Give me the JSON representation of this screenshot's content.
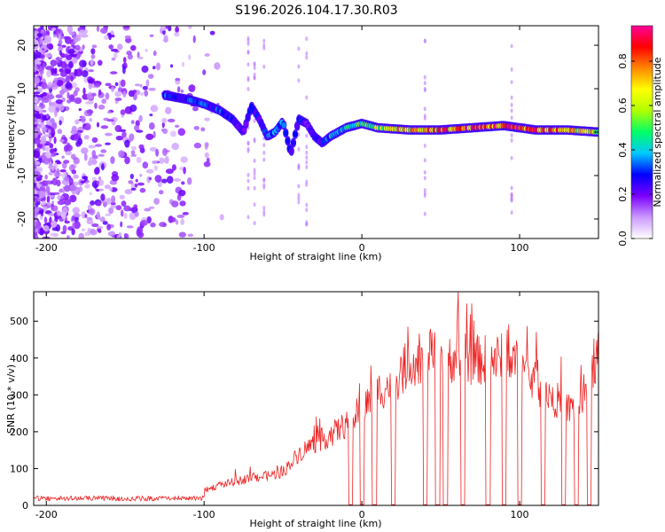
{
  "title": "S196.2026.104.17.30.R03",
  "chart_data": [
    {
      "type": "heatmap",
      "xlabel": "Height of straight line (km)",
      "ylabel": "Frequency (Hz)",
      "xlim": [
        -208,
        150
      ],
      "ylim": [
        -24.5,
        24.5
      ],
      "xticks": [
        -200,
        -100,
        0,
        100
      ],
      "yticks": [
        -20,
        -10,
        0,
        10,
        20
      ],
      "colorbar": {
        "label": "Normalized spectral amplitude",
        "range": [
          0,
          0.96
        ],
        "ticks": [
          0.0,
          0.2,
          0.4,
          0.6,
          0.8
        ],
        "colors": [
          "#ffffff",
          "#cc99ff",
          "#7a00ff",
          "#0000ff",
          "#00c8ff",
          "#00ff66",
          "#b0ff00",
          "#ffff00",
          "#ff8800",
          "#ff0000",
          "#ff0099"
        ]
      },
      "ridge": {
        "x": [
          -125,
          -110,
          -100,
          -90,
          -82,
          -75,
          -70,
          -65,
          -60,
          -55,
          -50,
          -45,
          -40,
          -35,
          -30,
          -25,
          -20,
          -15,
          -10,
          -5,
          0,
          10,
          30,
          50,
          70,
          90,
          110,
          130,
          150
        ],
        "frequency_hz": [
          8.5,
          7.5,
          6.5,
          5.0,
          3.0,
          0.0,
          6.0,
          3.0,
          -1.0,
          0.0,
          2.5,
          -5.0,
          3.0,
          2.0,
          -1.0,
          -2.5,
          -1.0,
          0.0,
          1.0,
          1.5,
          2.0,
          1.0,
          0.5,
          0.5,
          1.0,
          1.5,
          0.5,
          0.5,
          0.0
        ],
        "amplitude": [
          0.3,
          0.3,
          0.3,
          0.3,
          0.25,
          0.2,
          0.3,
          0.25,
          0.3,
          0.35,
          0.3,
          0.25,
          0.3,
          0.2,
          0.2,
          0.25,
          0.35,
          0.4,
          0.4,
          0.45,
          0.45,
          0.55,
          0.7,
          0.75,
          0.8,
          0.8,
          0.85,
          0.7,
          0.6
        ]
      }
    },
    {
      "type": "line",
      "xlabel": "Height of straight line (km)",
      "ylabel": "SNR (10 * v/v)",
      "xlim": [
        -208,
        150
      ],
      "ylim": [
        0,
        580
      ],
      "xticks": [
        -200,
        -100,
        0,
        100
      ],
      "yticks": [
        0,
        100,
        200,
        300,
        400,
        500
      ],
      "series": [
        {
          "name": "SNR",
          "color": "#ee2222",
          "x": [
            -208,
            -180,
            -150,
            -120,
            -100,
            -90,
            -80,
            -70,
            -60,
            -50,
            -40,
            -30,
            -20,
            -10,
            0,
            10,
            20,
            30,
            40,
            50,
            60,
            70,
            80,
            90,
            100,
            110,
            120,
            130,
            140,
            150
          ],
          "y": [
            15,
            15,
            18,
            25,
            40,
            55,
            65,
            75,
            80,
            90,
            140,
            170,
            190,
            220,
            260,
            310,
            330,
            390,
            400,
            405,
            400,
            395,
            395,
            400,
            380,
            330,
            300,
            260,
            280,
            420
          ],
          "dropouts": [
            -7,
            0,
            8,
            20,
            40,
            48,
            53,
            64,
            80,
            90,
            100,
            115,
            128,
            136,
            144
          ]
        }
      ]
    }
  ]
}
